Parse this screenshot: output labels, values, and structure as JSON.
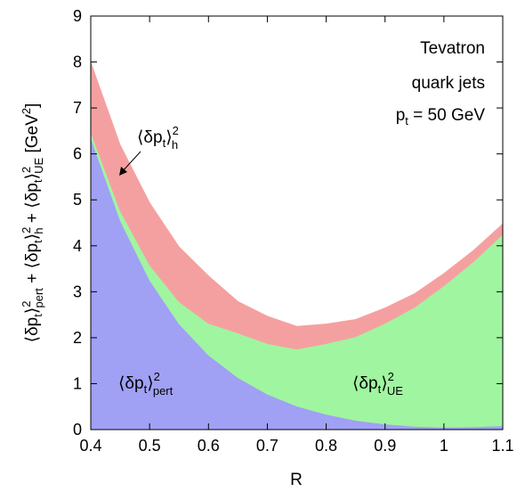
{
  "chart_data": {
    "type": "area",
    "stacked": true,
    "xlabel": "R",
    "ylabel": {
      "parts": [
        {
          "base": "⟨δp",
          "sub": "t",
          "sup": "2",
          "sub2": "pert"
        },
        {
          "base": "⟨δp",
          "sub": "t",
          "sup": "2",
          "sub2": "h"
        },
        {
          "base": "⟨δp",
          "sub": "t",
          "sup": "2",
          "sub2": "UE"
        }
      ],
      "unit_text": "[GeV",
      "unit_sup": "2",
      "unit_close": "]"
    },
    "xlim": [
      0.4,
      1.1
    ],
    "ylim": [
      0,
      9
    ],
    "xticks": [
      "0.4",
      "0.5",
      "0.6",
      "0.7",
      "0.8",
      "0.9",
      "1",
      "1.1"
    ],
    "yticks": [
      "0",
      "1",
      "2",
      "3",
      "4",
      "5",
      "6",
      "7",
      "8",
      "9"
    ],
    "grid": false,
    "x": [
      0.4,
      0.45,
      0.5,
      0.55,
      0.6,
      0.65,
      0.7,
      0.75,
      0.8,
      0.85,
      0.9,
      0.95,
      1.0,
      1.05,
      1.1
    ],
    "series": [
      {
        "name": "pert",
        "color": "#a0a0f5",
        "values": [
          6.35,
          4.55,
          3.25,
          2.3,
          1.62,
          1.13,
          0.77,
          0.51,
          0.33,
          0.2,
          0.12,
          0.07,
          0.05,
          0.06,
          0.08
        ]
      },
      {
        "name": "h",
        "color": "#a0f5a0",
        "values": [
          0.12,
          0.11,
          0.1,
          0.1,
          0.09,
          0.09,
          0.09,
          0.08,
          0.08,
          0.08,
          0.08,
          0.07,
          0.07,
          0.07,
          0.07
        ]
      },
      {
        "name": "UE",
        "color": "#a0f5a0",
        "values": [
          0.0,
          0.1,
          0.23,
          0.38,
          0.6,
          0.88,
          1.01,
          1.16,
          1.46,
          1.74,
          2.11,
          2.52,
          3.01,
          3.52,
          4.1
        ]
      },
      {
        "name": "top",
        "color": "#f5a0a0",
        "values": [
          1.53,
          1.44,
          1.36,
          1.2,
          1.04,
          0.69,
          0.6,
          0.5,
          0.43,
          0.38,
          0.34,
          0.3,
          0.27,
          0.25,
          0.23
        ]
      }
    ],
    "labels": {
      "tevatron": "Tevatron",
      "quark_jets": "quark jets",
      "pt_base": "p",
      "pt_sub": "t",
      "pt_value": " = 50 GeV",
      "pert_label": {
        "base": "⟨δp",
        "sub": "t",
        "sup": "2",
        "sub2": "pert"
      },
      "ue_label": {
        "base": "⟨δp",
        "sub": "t",
        "sup": "2",
        "sub2": "UE"
      },
      "h_label": {
        "base": "⟨δp",
        "sub": "t",
        "sup": "2",
        "sub2": "h"
      }
    }
  }
}
